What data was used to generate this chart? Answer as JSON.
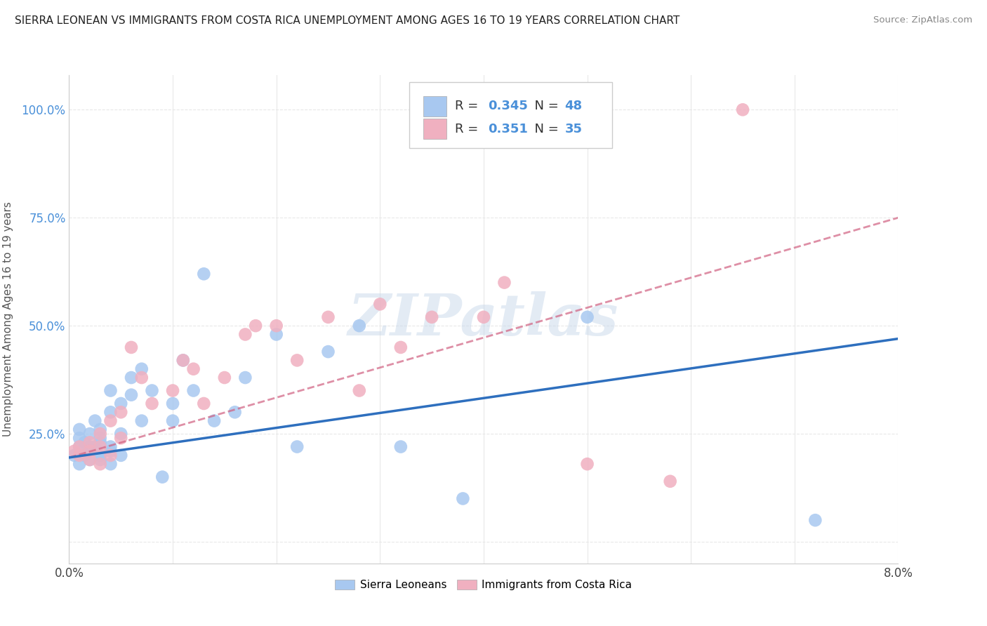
{
  "title": "SIERRA LEONEAN VS IMMIGRANTS FROM COSTA RICA UNEMPLOYMENT AMONG AGES 16 TO 19 YEARS CORRELATION CHART",
  "source": "Source: ZipAtlas.com",
  "ylabel": "Unemployment Among Ages 16 to 19 years",
  "xlim": [
    0.0,
    0.08
  ],
  "ylim": [
    -0.05,
    1.08
  ],
  "xticks": [
    0.0,
    0.01,
    0.02,
    0.03,
    0.04,
    0.05,
    0.06,
    0.07,
    0.08
  ],
  "xtick_labels": [
    "0.0%",
    "",
    "",
    "",
    "",
    "",
    "",
    "",
    "8.0%"
  ],
  "ytick_labels": [
    "",
    "25.0%",
    "50.0%",
    "75.0%",
    "100.0%"
  ],
  "yticks": [
    0.0,
    0.25,
    0.5,
    0.75,
    1.0
  ],
  "blue_color": "#a8c8f0",
  "pink_color": "#f0b0c0",
  "blue_line_color": "#2e6fbe",
  "pink_line_color": "#d06080",
  "watermark_color": "#c8d8ea",
  "legend_R_blue": "0.345",
  "legend_N_blue": "48",
  "legend_R_pink": "0.351",
  "legend_N_pink": "35",
  "blue_scatter_x": [
    0.0005,
    0.001,
    0.001,
    0.001,
    0.001,
    0.0015,
    0.0015,
    0.002,
    0.002,
    0.002,
    0.002,
    0.0025,
    0.0025,
    0.003,
    0.003,
    0.003,
    0.003,
    0.003,
    0.004,
    0.004,
    0.004,
    0.004,
    0.004,
    0.005,
    0.005,
    0.005,
    0.006,
    0.006,
    0.007,
    0.007,
    0.008,
    0.009,
    0.01,
    0.01,
    0.011,
    0.012,
    0.013,
    0.014,
    0.016,
    0.017,
    0.02,
    0.022,
    0.025,
    0.028,
    0.032,
    0.038,
    0.05,
    0.072
  ],
  "blue_scatter_y": [
    0.2,
    0.22,
    0.24,
    0.18,
    0.26,
    0.23,
    0.2,
    0.25,
    0.21,
    0.19,
    0.22,
    0.28,
    0.22,
    0.24,
    0.2,
    0.26,
    0.19,
    0.23,
    0.35,
    0.3,
    0.22,
    0.18,
    0.21,
    0.32,
    0.25,
    0.2,
    0.38,
    0.34,
    0.4,
    0.28,
    0.35,
    0.15,
    0.28,
    0.32,
    0.42,
    0.35,
    0.62,
    0.28,
    0.3,
    0.38,
    0.48,
    0.22,
    0.44,
    0.5,
    0.22,
    0.1,
    0.52,
    0.05
  ],
  "pink_scatter_x": [
    0.0005,
    0.001,
    0.001,
    0.002,
    0.002,
    0.002,
    0.003,
    0.003,
    0.003,
    0.004,
    0.004,
    0.005,
    0.005,
    0.006,
    0.007,
    0.008,
    0.01,
    0.011,
    0.012,
    0.013,
    0.015,
    0.017,
    0.018,
    0.02,
    0.022,
    0.025,
    0.028,
    0.03,
    0.032,
    0.035,
    0.04,
    0.042,
    0.05,
    0.058,
    0.065
  ],
  "pink_scatter_y": [
    0.21,
    0.22,
    0.2,
    0.19,
    0.21,
    0.23,
    0.25,
    0.18,
    0.22,
    0.28,
    0.2,
    0.3,
    0.24,
    0.45,
    0.38,
    0.32,
    0.35,
    0.42,
    0.4,
    0.32,
    0.38,
    0.48,
    0.5,
    0.5,
    0.42,
    0.52,
    0.35,
    0.55,
    0.45,
    0.52,
    0.52,
    0.6,
    0.18,
    0.14,
    1.0
  ],
  "blue_trend_x": [
    0.0,
    0.08
  ],
  "blue_trend_y": [
    0.195,
    0.47
  ],
  "pink_trend_x": [
    0.0,
    0.08
  ],
  "pink_trend_y": [
    0.195,
    0.75
  ],
  "background_color": "#ffffff",
  "grid_color": "#e8e8e8"
}
